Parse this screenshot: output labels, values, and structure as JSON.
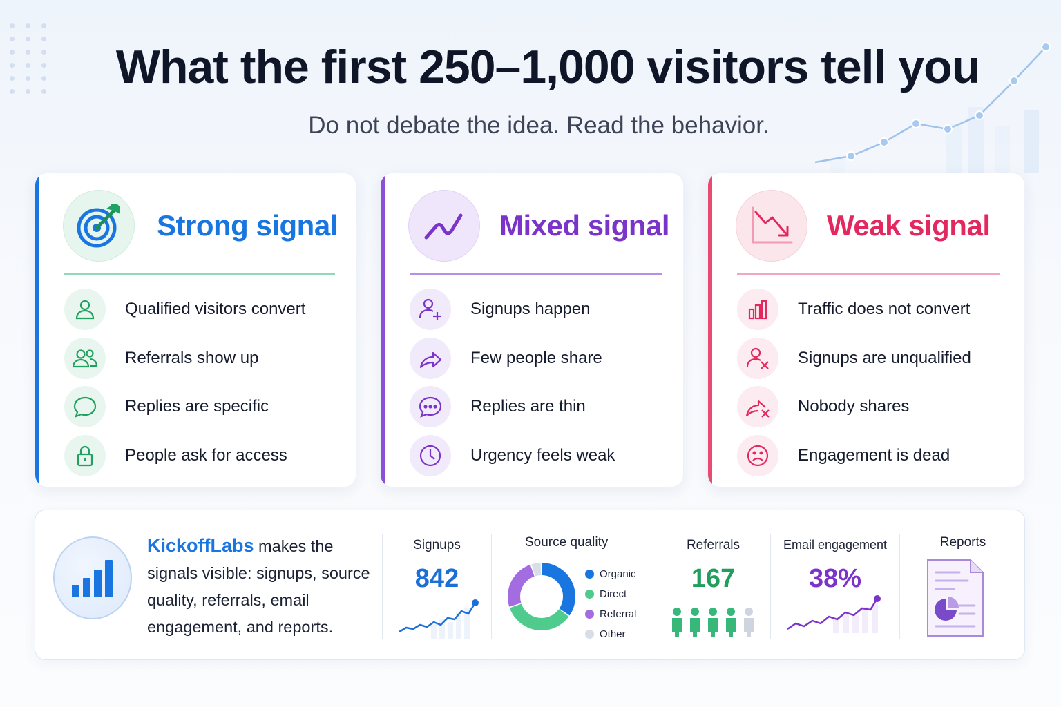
{
  "header": {
    "title": "What the first 250–1,000 visitors tell you",
    "subtitle": "Do not debate the idea. Read the behavior."
  },
  "cards": [
    {
      "title": "Strong signal",
      "color": "#1976e0",
      "accent": "#1976e0",
      "icon": "target-icon",
      "items": [
        {
          "label": "Qualified visitors convert",
          "icon": "user-icon"
        },
        {
          "label": "Referrals show up",
          "icon": "users-icon"
        },
        {
          "label": "Replies are specific",
          "icon": "chat-bubble-icon"
        },
        {
          "label": "People ask for access",
          "icon": "lock-icon"
        }
      ]
    },
    {
      "title": "Mixed signal",
      "color": "#7a34c9",
      "accent": "#8c4fd8",
      "icon": "trend-line-icon",
      "items": [
        {
          "label": "Signups happen",
          "icon": "user-plus-icon"
        },
        {
          "label": "Few people share",
          "icon": "share-arrow-icon"
        },
        {
          "label": "Replies are thin",
          "icon": "chat-dots-icon"
        },
        {
          "label": "Urgency feels weak",
          "icon": "clock-icon"
        }
      ]
    },
    {
      "title": "Weak signal",
      "color": "#e3285f",
      "accent": "#e94a72",
      "icon": "trend-down-icon",
      "items": [
        {
          "label": "Traffic does not convert",
          "icon": "bar-chart-icon"
        },
        {
          "label": "Signups are unqualified",
          "icon": "user-x-icon"
        },
        {
          "label": "Nobody shares",
          "icon": "share-x-icon"
        },
        {
          "label": "Engagement is dead",
          "icon": "sad-face-icon"
        }
      ]
    }
  ],
  "bottom": {
    "brand": "KickoffLabs",
    "description": " makes the signals visible: signups, source quality, referrals, email engagement, and reports.",
    "metrics": {
      "signups": {
        "label": "Signups",
        "value": "842",
        "color": "#1b6fd6"
      },
      "source_quality": {
        "label": "Source quality",
        "segments": [
          {
            "label": "Organic",
            "value": 35,
            "color": "#1976e0"
          },
          {
            "label": "Direct",
            "value": 35,
            "color": "#4fcc8d"
          },
          {
            "label": "Referral",
            "value": 25,
            "color": "#a36ce0"
          },
          {
            "label": "Other",
            "value": 5,
            "color": "#d9dee6"
          }
        ]
      },
      "referrals": {
        "label": "Referrals",
        "value": "167",
        "color": "#1f9e5c"
      },
      "email": {
        "label": "Email engagement",
        "value": "38%",
        "color": "#7a34c9"
      },
      "reports": {
        "label": "Reports",
        "icon": "report-document-icon"
      }
    }
  }
}
